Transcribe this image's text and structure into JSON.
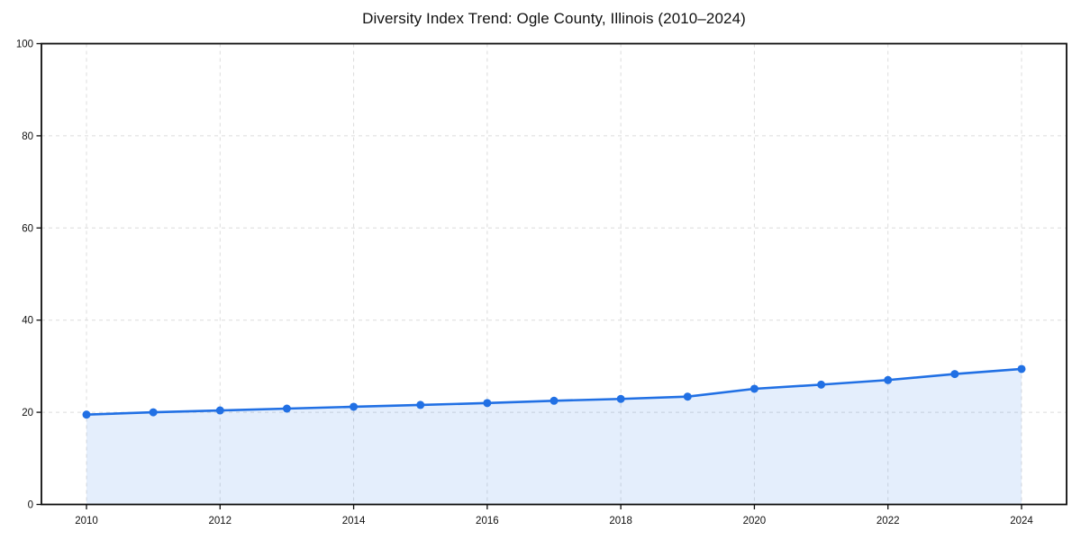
{
  "page": {
    "background": "#ffffff"
  },
  "chart_data": {
    "type": "area",
    "title": "Diversity Index Trend: Ogle County, Illinois (2010–2024)",
    "xlabel": "",
    "ylabel": "",
    "x": [
      2010,
      2011,
      2012,
      2013,
      2014,
      2015,
      2016,
      2017,
      2018,
      2019,
      2020,
      2021,
      2022,
      2023,
      2024
    ],
    "values": [
      19.5,
      20.0,
      20.4,
      20.8,
      21.2,
      21.6,
      22.0,
      22.5,
      22.9,
      23.4,
      25.1,
      26.0,
      27.0,
      28.3,
      29.4
    ],
    "xticks": [
      2010,
      2012,
      2014,
      2016,
      2018,
      2020,
      2022,
      2024
    ],
    "yticks": [
      0,
      20,
      40,
      60,
      80,
      100
    ],
    "ylim": [
      0,
      100
    ],
    "grid": "dashed",
    "legend": "none",
    "marker": "circle",
    "colors": {
      "line": "#2170e4",
      "fill": "#2170e4",
      "fill_opacity": 0.12,
      "grid": "#dcdcdc",
      "axis": "#0d0d0d",
      "text": "#111111",
      "background": "#ffffff"
    }
  }
}
